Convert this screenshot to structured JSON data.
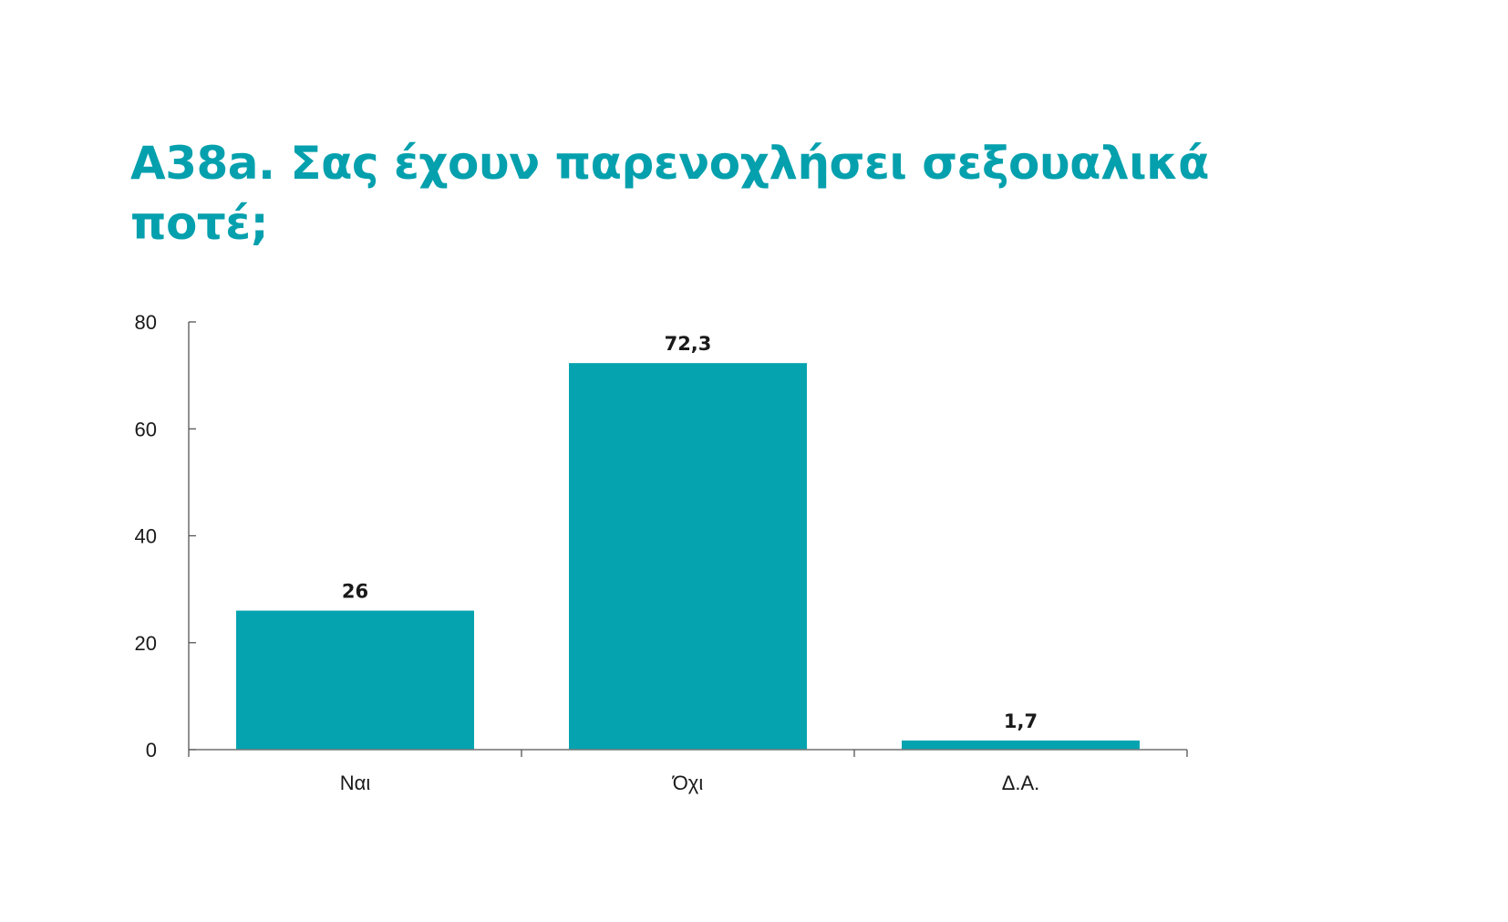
{
  "chart_data": {
    "type": "bar",
    "title": "A38a. Σας έχουν παρενοχλήσει σεξουαλικά ποτέ;",
    "categories": [
      "Ναι",
      "Όχι",
      "Δ.Α."
    ],
    "values": [
      26,
      72.3,
      1.7
    ],
    "value_labels": [
      "26",
      "72,3",
      "1,7"
    ],
    "xlabel": "",
    "ylabel": "",
    "ylim": [
      0,
      80
    ],
    "yticks": [
      0,
      20,
      40,
      60,
      80
    ],
    "ytick_labels": [
      "0",
      "20",
      "40",
      "60",
      "80"
    ],
    "grid": false,
    "legend": "none",
    "bar_color": "#05a3b0",
    "title_color": "#05a0ad"
  }
}
